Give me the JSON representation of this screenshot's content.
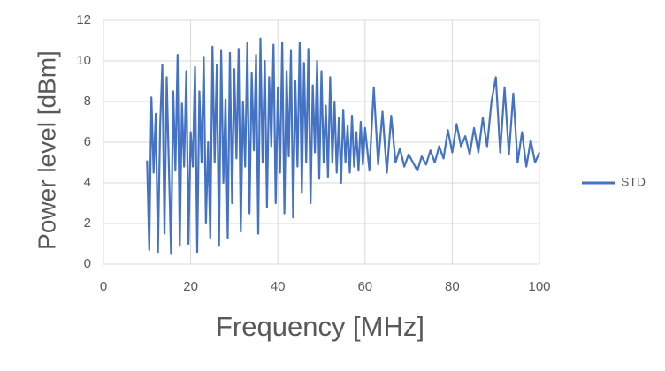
{
  "chart_data": {
    "type": "line",
    "x_label": "Frequency [MHz]",
    "y_label": "Power level [dBm]",
    "x": [
      10,
      10.5,
      11,
      11.5,
      12,
      12.5,
      13,
      13.5,
      14,
      14.5,
      15,
      15.5,
      16,
      16.5,
      17,
      17.5,
      18,
      18.5,
      19,
      19.5,
      20,
      20.5,
      21,
      21.5,
      22,
      22.5,
      23,
      23.5,
      24,
      24.5,
      25,
      25.5,
      26,
      26.5,
      27,
      27.5,
      28,
      28.5,
      29,
      29.5,
      30,
      30.5,
      31,
      31.5,
      32,
      32.5,
      33,
      33.5,
      34,
      34.5,
      35,
      35.5,
      36,
      36.5,
      37,
      37.5,
      38,
      38.5,
      39,
      39.5,
      40,
      40.5,
      41,
      41.5,
      42,
      42.5,
      43,
      43.5,
      44,
      44.5,
      45,
      45.5,
      46,
      46.5,
      47,
      47.5,
      48,
      48.5,
      49,
      49.5,
      50,
      50.5,
      51,
      51.5,
      52,
      52.5,
      53,
      53.5,
      54,
      54.5,
      55,
      55.5,
      56,
      56.5,
      57,
      57.5,
      58,
      58.5,
      59,
      59.5,
      60,
      61,
      62,
      63,
      64,
      65,
      66,
      67,
      68,
      69,
      70,
      71,
      72,
      73,
      74,
      75,
      76,
      77,
      78,
      79,
      80,
      81,
      82,
      83,
      84,
      85,
      86,
      87,
      88,
      89,
      90,
      91,
      92,
      93,
      94,
      95,
      96,
      97,
      98,
      99,
      100
    ],
    "series": [
      {
        "name": "STD",
        "color": "#4472c4",
        "values": [
          5.1,
          0.7,
          8.2,
          4.5,
          7.4,
          0.6,
          6.8,
          9.8,
          1.5,
          9.2,
          4.8,
          0.5,
          8.5,
          4.6,
          10.3,
          0.9,
          7.9,
          4.8,
          9.5,
          1.0,
          6.5,
          4.8,
          9.7,
          0.6,
          8.5,
          5.0,
          10.2,
          2.0,
          6.0,
          1.3,
          10.7,
          5.0,
          9.8,
          0.9,
          10.5,
          4.0,
          8.1,
          1.3,
          10.4,
          3.0,
          9.6,
          5.2,
          10.6,
          1.6,
          8.0,
          4.8,
          10.9,
          2.5,
          9.4,
          5.6,
          10.3,
          1.5,
          11.1,
          5.0,
          10.0,
          2.8,
          9.2,
          5.8,
          10.8,
          3.0,
          8.7,
          4.5,
          10.9,
          2.5,
          9.5,
          5.3,
          10.5,
          2.3,
          9.0,
          4.8,
          10.9,
          3.5,
          9.9,
          5.0,
          10.6,
          3.0,
          8.8,
          5.5,
          10.0,
          4.2,
          9.5,
          5.0,
          7.8,
          4.3,
          9.2,
          5.0,
          8.0,
          4.5,
          7.2,
          4.0,
          7.6,
          5.0,
          6.8,
          4.5,
          7.3,
          4.8,
          6.5,
          4.6,
          7.0,
          4.9,
          6.7,
          4.6,
          8.7,
          4.9,
          7.5,
          4.5,
          7.3,
          5.0,
          5.7,
          4.8,
          5.4,
          5.0,
          4.6,
          5.3,
          4.9,
          5.6,
          5.0,
          5.8,
          5.2,
          6.6,
          5.5,
          6.9,
          5.8,
          6.3,
          5.4,
          6.7,
          5.5,
          7.2,
          5.8,
          8.0,
          9.2,
          5.5,
          8.7,
          5.4,
          8.4,
          5.0,
          6.5,
          4.8,
          6.1,
          5.0,
          5.5
        ]
      }
    ],
    "xlim": [
      0,
      100
    ],
    "xticks": [
      0,
      20,
      40,
      60,
      80,
      100
    ],
    "ylim": [
      0,
      12
    ],
    "yticks": [
      0,
      2,
      4,
      6,
      8,
      10,
      12
    ],
    "grid": true,
    "legend": "right"
  }
}
